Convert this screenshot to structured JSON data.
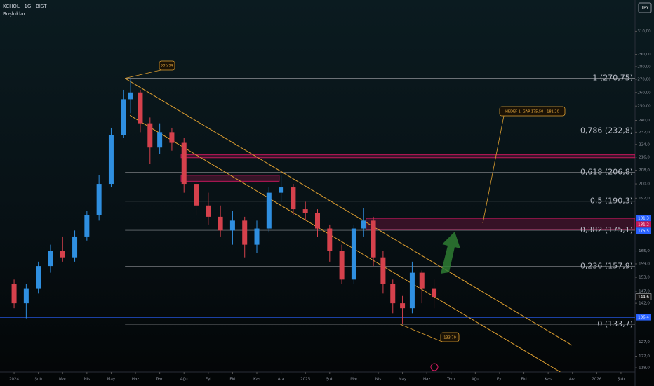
{
  "header": {
    "symbol": "KCHOL · 1G · BIST",
    "indicator": "Boşluklar",
    "currency": "TRY"
  },
  "chart_data": {
    "type": "candlestick",
    "log_scale": true,
    "up_color": "#2f8fe0",
    "down_color": "#d5414c",
    "xlim": [
      -0.58,
      25.58
    ],
    "ylim": [
      116.6,
      339
    ],
    "xticks": [
      {
        "value": 0,
        "label": "2024"
      },
      {
        "value": 1,
        "label": "Şub"
      },
      {
        "value": 2,
        "label": "Mar"
      },
      {
        "value": 3,
        "label": "Nis"
      },
      {
        "value": 4,
        "label": "May"
      },
      {
        "value": 5,
        "label": "Haz"
      },
      {
        "value": 6,
        "label": "Tem"
      },
      {
        "value": 7,
        "label": "Ağu"
      },
      {
        "value": 8,
        "label": "Eyl"
      },
      {
        "value": 9,
        "label": "Eki"
      },
      {
        "value": 10,
        "label": "Kas"
      },
      {
        "value": 11,
        "label": "Ara"
      },
      {
        "value": 12,
        "label": "2025"
      },
      {
        "value": 13,
        "label": "Şub"
      },
      {
        "value": 14,
        "label": "Mar"
      },
      {
        "value": 15,
        "label": "Nis"
      },
      {
        "value": 16,
        "label": "May"
      },
      {
        "value": 17,
        "label": "Haz"
      },
      {
        "value": 18,
        "label": "Tem"
      },
      {
        "value": 19,
        "label": "Ağu"
      },
      {
        "value": 20,
        "label": "Eyl"
      },
      {
        "value": 21,
        "label": "Eki"
      },
      {
        "value": 22,
        "label": "Kas"
      },
      {
        "value": 23,
        "label": "Ara"
      },
      {
        "value": 24,
        "label": "2026"
      },
      {
        "value": 25,
        "label": "Şub"
      }
    ],
    "yticks": [
      {
        "value": 310,
        "label": "310,00"
      },
      {
        "value": 290,
        "label": "290,00"
      },
      {
        "value": 280,
        "label": "280,00"
      },
      {
        "value": 270,
        "label": "270,00"
      },
      {
        "value": 260,
        "label": "260,00"
      },
      {
        "value": 250,
        "label": "250,00"
      },
      {
        "value": 240,
        "label": "240,0"
      },
      {
        "value": 232,
        "label": "232,0"
      },
      {
        "value": 224,
        "label": "224,0"
      },
      {
        "value": 216,
        "label": "216,0"
      },
      {
        "value": 208,
        "label": "208,0"
      },
      {
        "value": 200,
        "label": "200,0"
      },
      {
        "value": 192,
        "label": "192,0"
      },
      {
        "value": 165,
        "label": "165,0"
      },
      {
        "value": 159,
        "label": "159,0"
      },
      {
        "value": 153,
        "label": "153,0"
      },
      {
        "value": 147,
        "label": "147,0"
      },
      {
        "value": 142,
        "label": "142,0"
      },
      {
        "value": 127,
        "label": "127,0"
      },
      {
        "value": 122,
        "label": "122,0"
      },
      {
        "value": 118,
        "label": "118,0"
      }
    ],
    "x": [
      0,
      0.5,
      1,
      1.5,
      2,
      2.5,
      3,
      3.5,
      4,
      4.5,
      4.8,
      5.2,
      5.6,
      6,
      6.5,
      7,
      7.5,
      8,
      8.5,
      9,
      9.5,
      10,
      10.5,
      11,
      11.5,
      12,
      12.5,
      13,
      13.5,
      14,
      14.4,
      14.8,
      15.2,
      15.6,
      16,
      16.4,
      16.8,
      17.3
    ],
    "open": [
      150,
      142,
      148,
      158,
      165,
      162,
      172,
      183,
      200,
      230,
      255,
      260,
      238,
      222,
      232,
      225,
      200,
      188,
      182,
      175,
      180,
      168,
      176,
      195,
      198,
      186,
      184,
      176,
      165,
      152,
      176,
      180,
      162,
      150,
      142,
      140,
      155,
      148
    ],
    "high": [
      152,
      150,
      160,
      168,
      172,
      175,
      185,
      205,
      235,
      262,
      270.75,
      262,
      242,
      238,
      235,
      228,
      203,
      195,
      188,
      185,
      182,
      180,
      198,
      205,
      200,
      190,
      186,
      178,
      168,
      178,
      186.6,
      182,
      165,
      152,
      145,
      160,
      156,
      152
    ],
    "low": [
      140,
      136,
      146,
      155,
      160,
      160,
      170,
      180,
      198,
      228,
      245,
      232,
      212,
      218,
      220,
      195,
      183,
      178,
      172,
      168,
      162,
      164,
      174,
      190,
      183,
      180,
      172,
      160,
      150,
      150,
      172,
      158,
      146,
      138,
      133.7,
      138,
      142,
      140
    ],
    "close": [
      142,
      148,
      158,
      165,
      162,
      172,
      183,
      200,
      230,
      255,
      260,
      238,
      222,
      232,
      225,
      200,
      188,
      182,
      175,
      180,
      168,
      176,
      195,
      198,
      186,
      184,
      176,
      165,
      152,
      176,
      180,
      162,
      150,
      142,
      140,
      155,
      148,
      144.6
    ],
    "fib_levels": [
      {
        "value": 270.75,
        "label": "1 (270,75)"
      },
      {
        "value": 232.8,
        "label": "0,786 (232,8)"
      },
      {
        "value": 206.8,
        "label": "0,618 (206,8)"
      },
      {
        "value": 190.3,
        "label": "0,5 (190,3)"
      },
      {
        "value": 175.1,
        "label": "0,382 (175,1)"
      },
      {
        "value": 157.9,
        "label": "0,236 (157,9)"
      },
      {
        "value": 133.7,
        "label": "0 (133,7)"
      }
    ],
    "support_line": {
      "value": 136.4,
      "color": "#2962ff"
    },
    "zones": [
      {
        "x_start": 6.88,
        "x_end": 25.58,
        "low": 215.6,
        "high": 217.4,
        "color": "#c2185b"
      },
      {
        "x_start": 6.88,
        "x_end": 10.92,
        "low": 201.5,
        "high": 205,
        "color": "#c2185b"
      },
      {
        "x_start": 14.5,
        "x_end": 25.58,
        "low": 175.5,
        "high": 181.2,
        "color": "#c2185b"
      }
    ],
    "trend_lines": [
      {
        "x": [
          4.57,
          22.98
        ],
        "y": [
          270.75,
          125.9
        ],
        "color": "#e0a030"
      },
      {
        "x": [
          4.77,
          22.5
        ],
        "y": [
          243.5,
          116.6
        ],
        "color": "#e0a030"
      }
    ],
    "callouts": [
      {
        "label": "270,75",
        "value": 270.75
      },
      {
        "label": "133,70",
        "value": 133.7
      },
      {
        "label": "HEDEF 1. GAP 175,50 - 181,20"
      }
    ],
    "price_labels": [
      {
        "value": 181.3,
        "label": "181,3",
        "color": "#2962ff"
      },
      {
        "value": 181.2,
        "label": "181,2",
        "color": "#c2185b"
      },
      {
        "value": 175.5,
        "label": "175,5",
        "color": "#2962ff"
      },
      {
        "value": 144.6,
        "label": "144,6",
        "color": "#e0e0e0"
      },
      {
        "value": 136.4,
        "label": "136,4",
        "color": "#2962ff"
      }
    ]
  }
}
